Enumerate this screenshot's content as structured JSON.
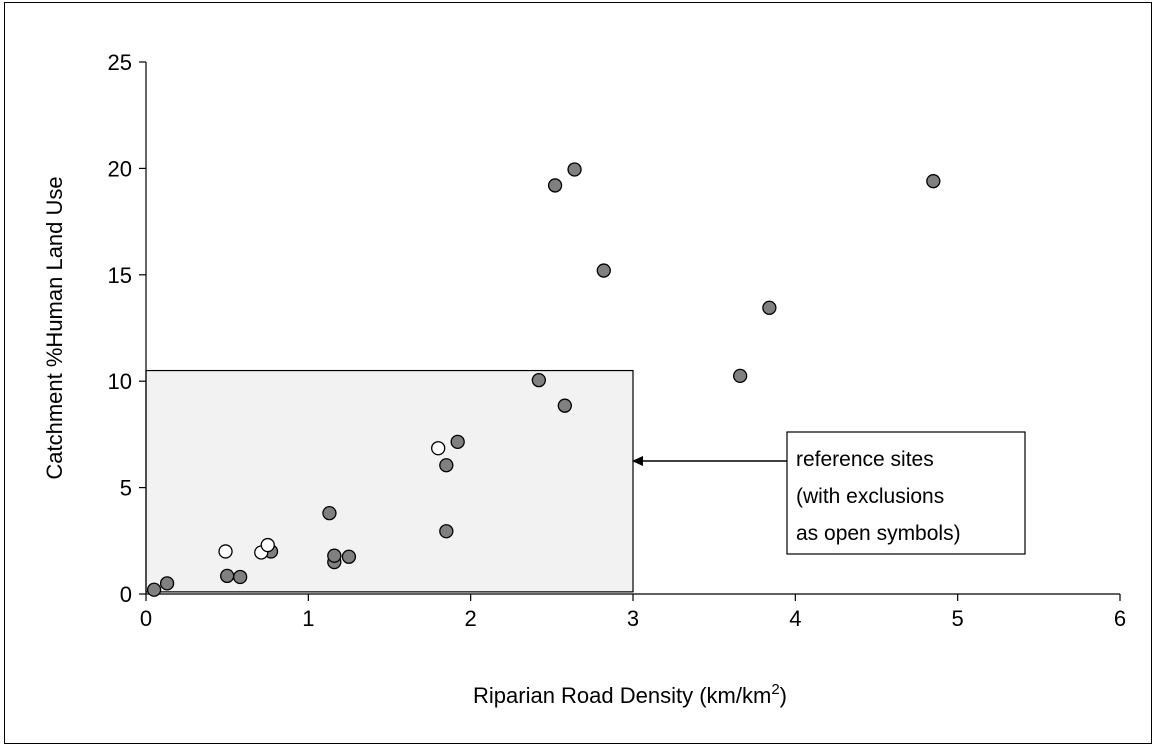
{
  "chart_data": {
    "type": "scatter",
    "title": "",
    "xlabel": "Riparian Road Density (km/km",
    "xlabel_sup": "2",
    "xlabel_end": ")",
    "ylabel": "Catchment %Human Land Use",
    "xlim": [
      0,
      6
    ],
    "ylim": [
      0,
      25
    ],
    "x_ticks": [
      "0",
      "1",
      "2",
      "3",
      "4",
      "5",
      "6"
    ],
    "y_ticks": [
      "0",
      "5",
      "10",
      "15",
      "20",
      "25"
    ],
    "grid": false,
    "series": [
      {
        "style": "filled",
        "color": "#808080",
        "points": [
          [
            0.05,
            0.2
          ],
          [
            0.13,
            0.5
          ],
          [
            0.5,
            0.85
          ],
          [
            0.58,
            0.8
          ],
          [
            0.77,
            2.0
          ],
          [
            1.13,
            3.8
          ],
          [
            1.16,
            1.5
          ],
          [
            1.16,
            1.8
          ],
          [
            1.25,
            1.75
          ],
          [
            1.85,
            2.95
          ],
          [
            1.85,
            6.05
          ],
          [
            1.92,
            7.15
          ],
          [
            2.42,
            10.05
          ],
          [
            2.52,
            19.2
          ],
          [
            2.58,
            8.85
          ],
          [
            2.64,
            19.95
          ],
          [
            2.82,
            15.2
          ],
          [
            3.66,
            10.25
          ],
          [
            3.84,
            13.45
          ],
          [
            4.85,
            19.4
          ]
        ]
      },
      {
        "style": "open",
        "color": "#ffffff",
        "points": [
          [
            0.49,
            2.0
          ],
          [
            0.71,
            1.95
          ],
          [
            0.75,
            2.3
          ],
          [
            1.8,
            6.85
          ]
        ]
      }
    ],
    "highlight_box": {
      "x": [
        0,
        3
      ],
      "y": [
        0.1,
        10.5
      ],
      "fill": "#f2f2f2"
    },
    "annotation": {
      "lines": [
        "reference sites",
        "(with exclusions",
        "as open symbols)"
      ]
    }
  }
}
